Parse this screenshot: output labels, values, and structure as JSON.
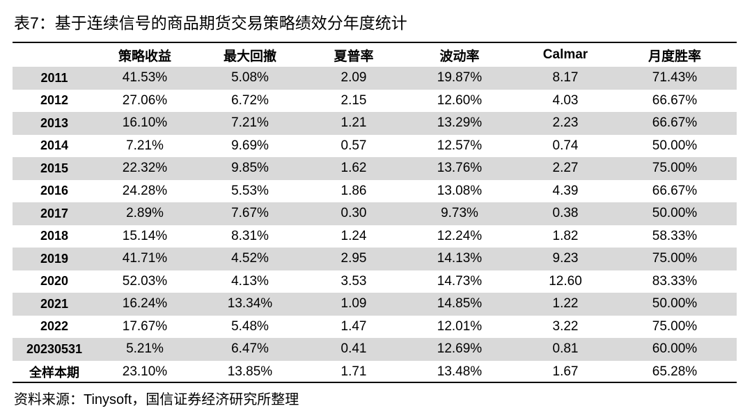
{
  "caption": "表7：基于连续信号的商品期货交易策略绩效分年度统计",
  "table": {
    "headers": [
      "",
      "策略收益",
      "最大回撤",
      "夏普率",
      "波动率",
      "Calmar",
      "月度胜率"
    ],
    "rows": [
      [
        "2011",
        "41.53%",
        "5.08%",
        "2.09",
        "19.87%",
        "8.17",
        "71.43%"
      ],
      [
        "2012",
        "27.06%",
        "6.72%",
        "2.15",
        "12.60%",
        "4.03",
        "66.67%"
      ],
      [
        "2013",
        "16.10%",
        "7.21%",
        "1.21",
        "13.29%",
        "2.23",
        "66.67%"
      ],
      [
        "2014",
        "7.21%",
        "9.69%",
        "0.57",
        "12.57%",
        "0.74",
        "50.00%"
      ],
      [
        "2015",
        "22.32%",
        "9.85%",
        "1.62",
        "13.76%",
        "2.27",
        "75.00%"
      ],
      [
        "2016",
        "24.28%",
        "5.53%",
        "1.86",
        "13.08%",
        "4.39",
        "66.67%"
      ],
      [
        "2017",
        "2.89%",
        "7.67%",
        "0.30",
        "9.73%",
        "0.38",
        "50.00%"
      ],
      [
        "2018",
        "15.14%",
        "8.31%",
        "1.24",
        "12.24%",
        "1.82",
        "58.33%"
      ],
      [
        "2019",
        "41.71%",
        "4.52%",
        "2.95",
        "14.13%",
        "9.23",
        "75.00%"
      ],
      [
        "2020",
        "52.03%",
        "4.13%",
        "3.53",
        "14.73%",
        "12.60",
        "83.33%"
      ],
      [
        "2021",
        "16.24%",
        "13.34%",
        "1.09",
        "14.85%",
        "1.22",
        "50.00%"
      ],
      [
        "2022",
        "17.67%",
        "5.48%",
        "1.47",
        "12.01%",
        "3.22",
        "75.00%"
      ],
      [
        "20230531",
        "5.21%",
        "6.47%",
        "0.41",
        "12.69%",
        "0.81",
        "60.00%"
      ],
      [
        "全样本期",
        "23.10%",
        "13.85%",
        "1.71",
        "13.48%",
        "1.67",
        "65.28%"
      ]
    ]
  },
  "source": "资料来源：Tinysoft，国信证券经济研究所整理",
  "colors": {
    "stripe": "#d9d9d9",
    "rule": "#000000",
    "text": "#000000"
  }
}
